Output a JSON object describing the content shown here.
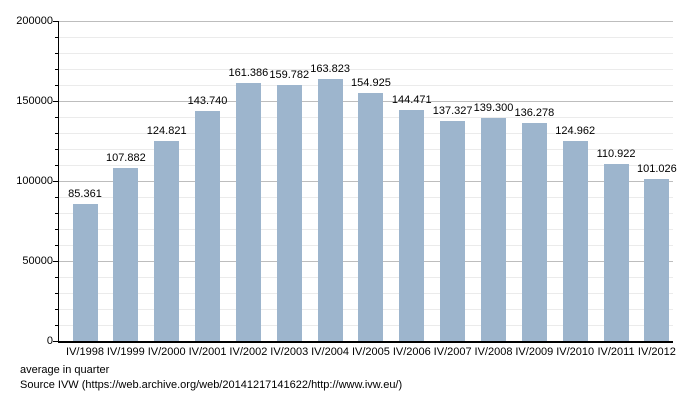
{
  "chart_data": {
    "type": "bar",
    "title": "",
    "xlabel": "",
    "ylabel": "",
    "categories": [
      "IV/1998",
      "IV/1999",
      "IV/2000",
      "IV/2001",
      "IV/2002",
      "IV/2003",
      "IV/2004",
      "IV/2005",
      "IV/2006",
      "IV/2007",
      "IV/2008",
      "IV/2009",
      "IV/2010",
      "IV/2011",
      "IV/2012"
    ],
    "values": [
      85361,
      107882,
      124821,
      143740,
      161386,
      159782,
      163823,
      154925,
      144471,
      137327,
      139300,
      136278,
      124962,
      110922,
      101026
    ],
    "value_labels": [
      "85.361",
      "107.882",
      "124.821",
      "143.740",
      "161.386",
      "159.782",
      "163.823",
      "154.925",
      "144.471",
      "137.327",
      "139.300",
      "136.278",
      "124.962",
      "110.922",
      "101.026"
    ],
    "ylim": [
      0,
      200000
    ],
    "y_major_ticks": [
      0,
      50000,
      100000,
      150000,
      200000
    ],
    "y_major_tick_labels": [
      "0",
      "50000",
      "100000",
      "150000",
      "200000"
    ],
    "y_minor_tick_interval": 10000,
    "grid": true,
    "legend": "none",
    "bar_color": "#9db5cd"
  },
  "footer": {
    "caption": "average in quarter",
    "source": "Source IVW (https://web.archive.org/web/20141217141622/http://www.ivw.eu/)"
  }
}
